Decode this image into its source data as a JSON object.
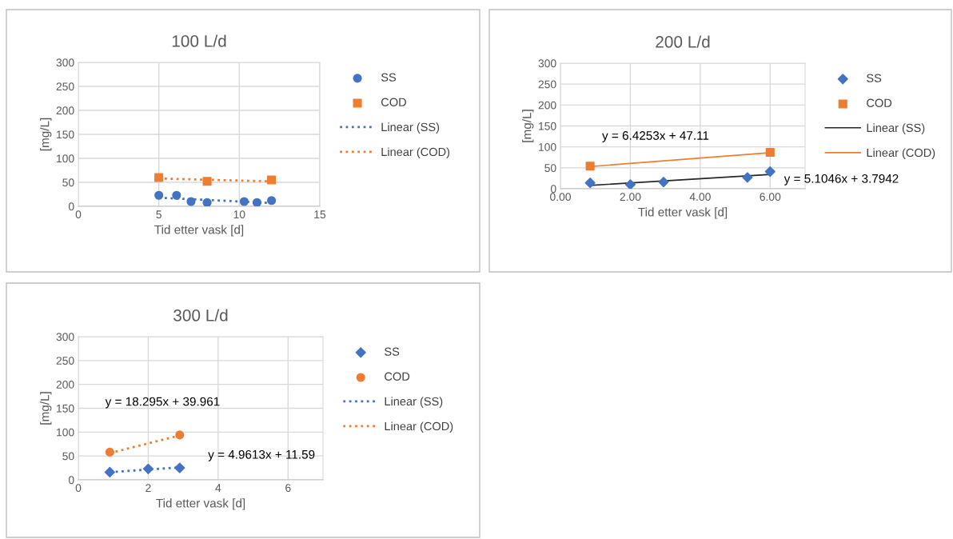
{
  "chart_data": [
    {
      "type": "scatter",
      "title": "100 L/d",
      "xlabel": "Tid etter vask [d]",
      "ylabel": "[mg/L]",
      "xlim": [
        0,
        15
      ],
      "xticks": [
        0,
        5,
        10,
        15
      ],
      "ylim": [
        0,
        300
      ],
      "yticks": [
        0,
        50,
        100,
        150,
        200,
        250,
        300
      ],
      "grid": true,
      "legend": "right",
      "series": [
        {
          "name": "SS",
          "color": "#4472c4",
          "marker": "circle",
          "x": [
            5,
            6.1,
            7,
            8,
            10.3,
            11.1,
            12
          ],
          "values": [
            23,
            23,
            10,
            8,
            10,
            8,
            12
          ]
        },
        {
          "name": "COD",
          "color": "#ed7d31",
          "marker": "square",
          "x": [
            5,
            8,
            12
          ],
          "values": [
            60,
            52,
            55
          ]
        },
        {
          "name": "Linear (SS)",
          "type": "line",
          "color": "#4472c4",
          "marker": "none",
          "line_style": "dotted",
          "x": [
            5,
            12
          ],
          "values": [
            18,
            7
          ]
        },
        {
          "name": "Linear (COD)",
          "type": "line",
          "color": "#ed7d31",
          "marker": "none",
          "line_style": "dotted",
          "x": [
            5,
            12
          ],
          "values": [
            58,
            52
          ]
        }
      ]
    },
    {
      "type": "scatter",
      "title": "200 L/d",
      "xlabel": "Tid etter vask [d]",
      "ylabel": "[mg/L]",
      "xlim": [
        0,
        7
      ],
      "xticks": [
        {
          "value": 0,
          "label": "0.00"
        },
        {
          "value": 2,
          "label": "2.00"
        },
        {
          "value": 4,
          "label": "4.00"
        },
        {
          "value": 6,
          "label": "6.00"
        }
      ],
      "ylim": [
        0,
        300
      ],
      "yticks": [
        0,
        50,
        100,
        150,
        200,
        250,
        300
      ],
      "grid": true,
      "legend": "right",
      "annotations": [
        "y = 6.4253x + 47.11",
        "y = 5.1046x + 3.7942"
      ],
      "series": [
        {
          "name": "SS",
          "color": "#4472c4",
          "marker": "diamond",
          "x": [
            0.85,
            2,
            2.95,
            5.35,
            6
          ],
          "values": [
            14,
            10,
            16,
            27,
            41
          ]
        },
        {
          "name": "COD",
          "color": "#ed7d31",
          "marker": "square",
          "x": [
            0.85,
            6
          ],
          "values": [
            54,
            87
          ]
        },
        {
          "name": "Linear (SS)",
          "type": "line",
          "color": "#262626",
          "marker": "none",
          "line_style": "solid",
          "x": [
            0.85,
            6
          ],
          "values": [
            8,
            34
          ]
        },
        {
          "name": "Linear (COD)",
          "type": "line",
          "color": "#ed7d31",
          "marker": "none",
          "line_style": "solid",
          "x": [
            0.85,
            6
          ],
          "values": [
            53,
            86
          ]
        }
      ]
    },
    {
      "type": "scatter",
      "title": "300 L/d",
      "xlabel": "Tid etter vask [d]",
      "ylabel": "[mg/L]",
      "xlim": [
        0,
        7
      ],
      "xticks": [
        0,
        2,
        4,
        6
      ],
      "ylim": [
        0,
        300
      ],
      "yticks": [
        0,
        50,
        100,
        150,
        200,
        250,
        300
      ],
      "grid": true,
      "legend": "right",
      "annotations": [
        "y = 18.295x + 39.961",
        "y = 4.9613x + 11.59"
      ],
      "series": [
        {
          "name": "SS",
          "color": "#4472c4",
          "marker": "diamond",
          "x": [
            0.9,
            2,
            2.9
          ],
          "values": [
            16,
            23,
            25
          ]
        },
        {
          "name": "COD",
          "color": "#ed7d31",
          "marker": "circle",
          "x": [
            0.9,
            2.9
          ],
          "values": [
            58,
            94
          ]
        },
        {
          "name": "Linear (SS)",
          "type": "line",
          "color": "#4472c4",
          "marker": "none",
          "line_style": "dotted",
          "x": [
            0.9,
            2.9
          ],
          "values": [
            16,
            26
          ]
        },
        {
          "name": "Linear (COD)",
          "type": "line",
          "color": "#ed7d31",
          "marker": "none",
          "line_style": "dotted",
          "x": [
            0.9,
            2.9
          ],
          "values": [
            56,
            93
          ]
        }
      ]
    }
  ]
}
